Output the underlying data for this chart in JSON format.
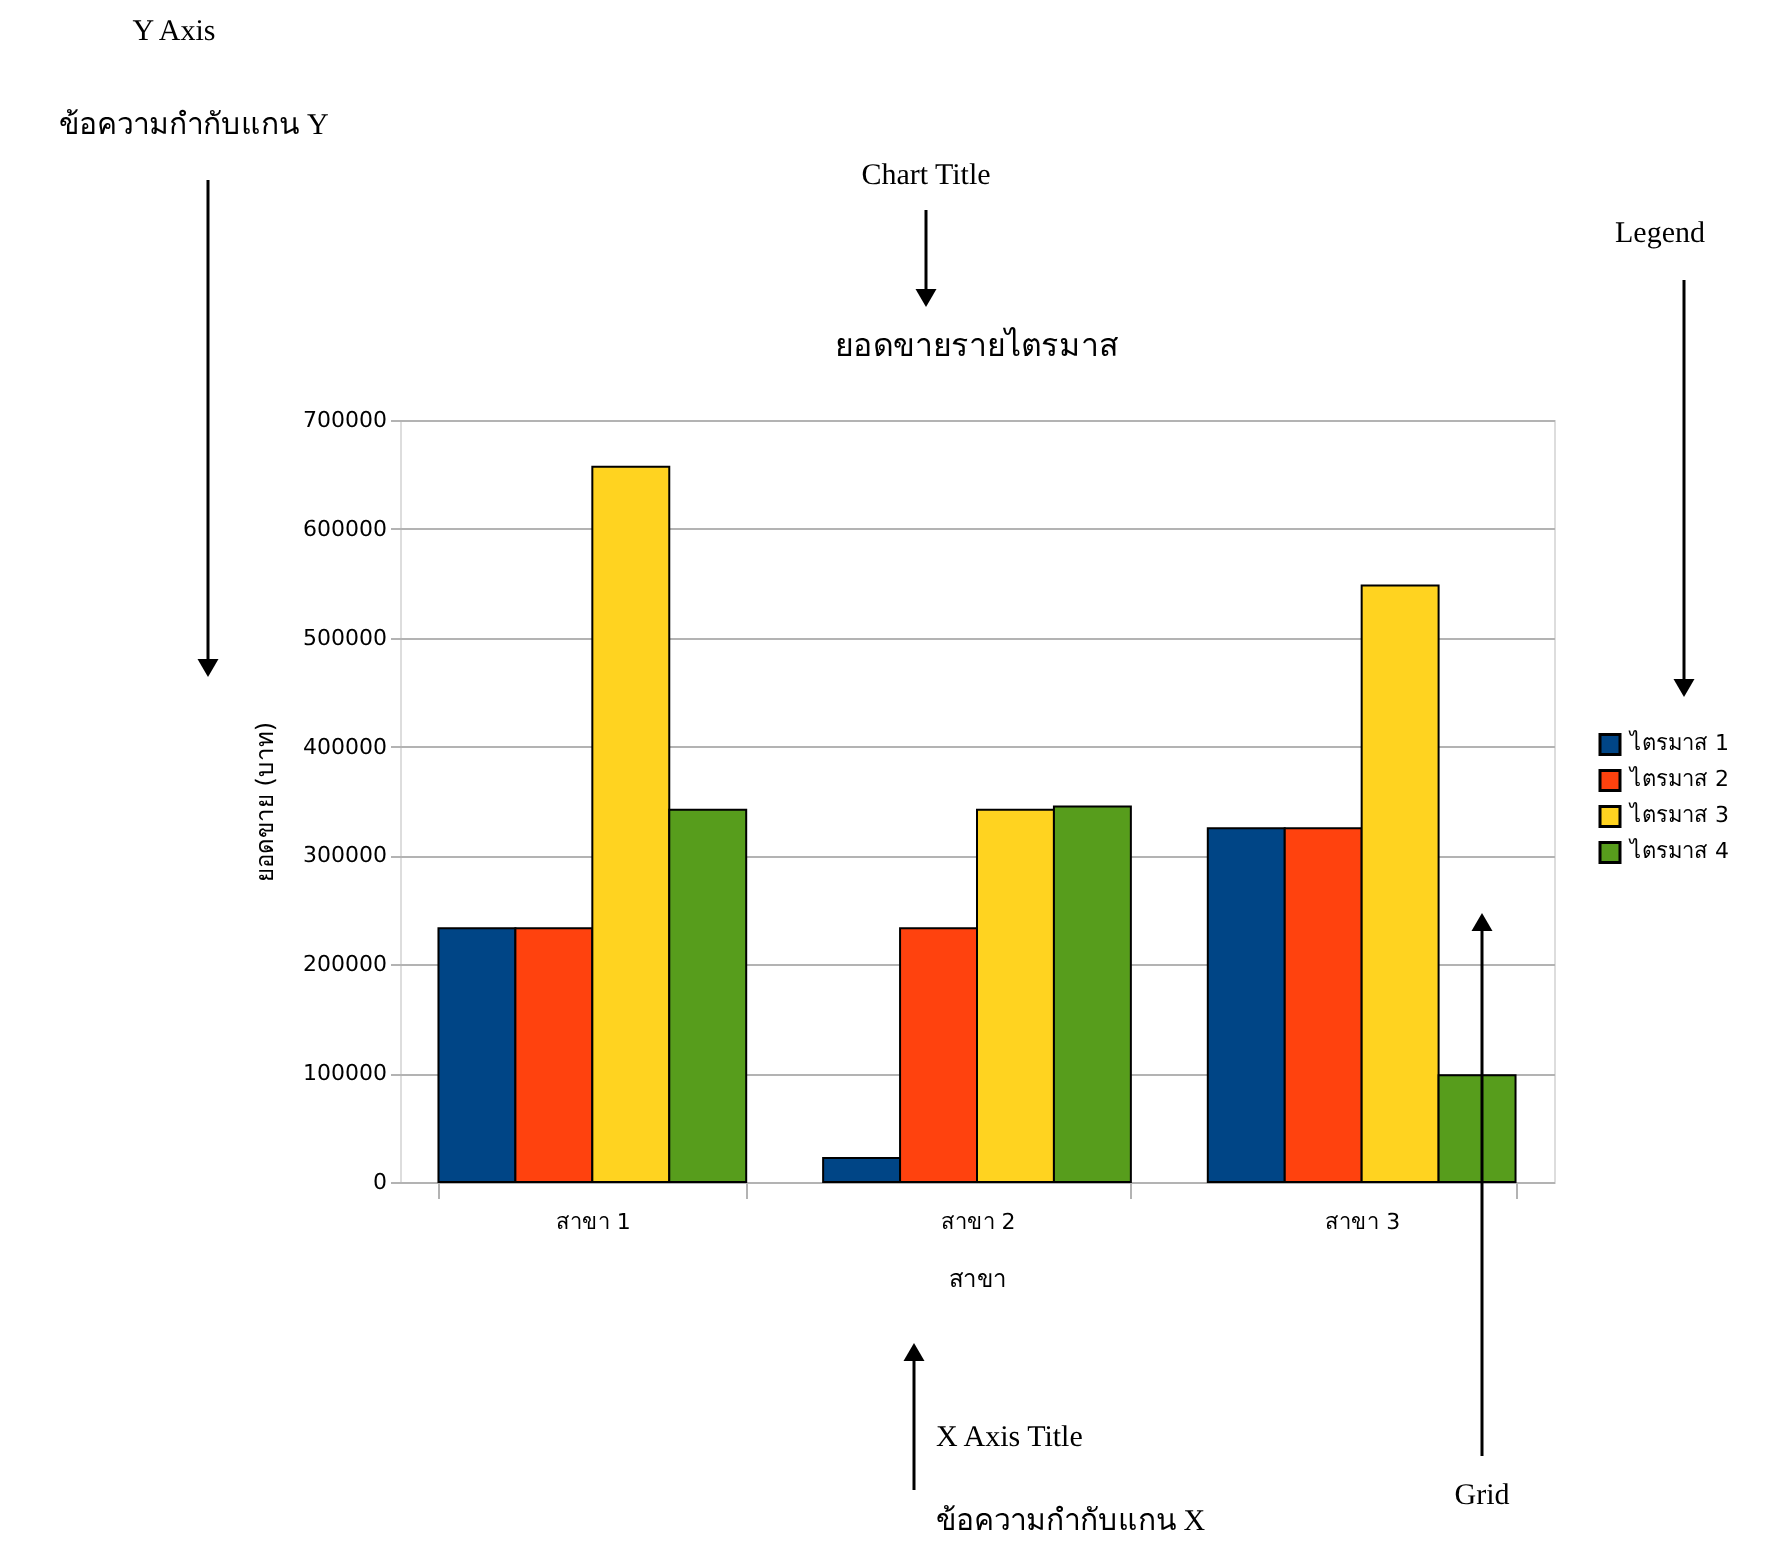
{
  "chart_data": {
    "type": "bar",
    "title": "ยอดขายรายไตรมาส",
    "xlabel": "สาขา",
    "ylabel": "ยอดขาย (บาท)",
    "categories": [
      "สาขา 1",
      "สาขา 2",
      "สาขา 3"
    ],
    "series": [
      {
        "name": "ไตรมาส 1",
        "color": "#004586",
        "values": [
          233000,
          22000,
          325000
        ]
      },
      {
        "name": "ไตรมาส 2",
        "color": "#ff420e",
        "values": [
          233000,
          233000,
          325000
        ]
      },
      {
        "name": "ไตรมาส 3",
        "color": "#ffd320",
        "values": [
          657000,
          342000,
          548000
        ]
      },
      {
        "name": "ไตรมาส 4",
        "color": "#579d1c",
        "values": [
          342000,
          345000,
          98000
        ]
      }
    ],
    "ylim": [
      0,
      700000
    ],
    "yticks": [
      0,
      100000,
      200000,
      300000,
      400000,
      500000,
      600000,
      700000
    ],
    "grid": "y",
    "legend": "right",
    "annotations": [
      "Y Axis",
      "ข้อความกำกับแกน Y",
      "Chart Title",
      "Legend",
      "X Axis Title",
      "ข้อความกำกับแกน X",
      "Grid"
    ]
  }
}
